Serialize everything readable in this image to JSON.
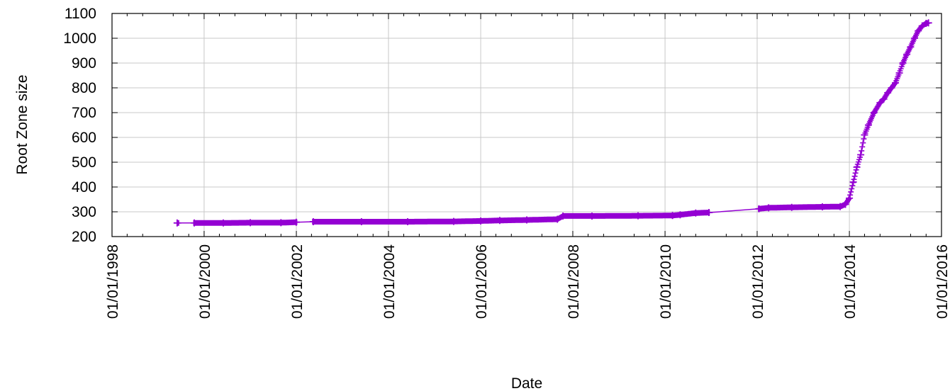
{
  "chart_data": {
    "type": "line",
    "title": "",
    "xlabel": "Date",
    "ylabel": "Root Zone size",
    "grid": true,
    "legend": "none",
    "marker": "plus",
    "color": "#9400d3",
    "x_ticks": [
      "01/01/1998",
      "01/01/2000",
      "01/01/2002",
      "01/01/2004",
      "01/01/2006",
      "01/01/2008",
      "01/01/2010",
      "01/01/2012",
      "01/01/2014",
      "01/01/2016"
    ],
    "y_ticks": [
      200,
      300,
      400,
      500,
      600,
      700,
      800,
      900,
      1000,
      1100
    ],
    "xlim": [
      "1998-01-01",
      "2016-01-01"
    ],
    "ylim": [
      200,
      1100
    ],
    "series": [
      {
        "x": [
          "1999-06-01",
          "1999-10-15",
          "2000-06-01",
          "2001-01-01",
          "2001-09-01",
          "2001-12-31",
          "2002-05-15",
          "2003-06-01",
          "2004-06-01",
          "2005-06-01",
          "2006-01-01",
          "2006-06-01",
          "2007-01-01",
          "2007-09-01",
          "2007-10-15",
          "2008-06-01",
          "2009-06-01",
          "2010-03-01",
          "2010-05-01",
          "2010-09-01",
          "2010-12-15",
          "2012-01-15",
          "2012-04-01",
          "2012-10-01",
          "2013-06-01",
          "2013-10-20",
          "2013-12-01",
          "2014-01-01",
          "2014-02-01",
          "2014-03-01",
          "2014-04-01",
          "2014-05-01",
          "2014-06-01",
          "2014-07-15",
          "2014-09-01",
          "2014-10-01",
          "2014-11-01",
          "2014-12-01",
          "2015-01-01",
          "2015-02-01",
          "2015-03-01",
          "2015-04-01",
          "2015-05-01",
          "2015-06-01",
          "2015-07-01",
          "2015-08-01",
          "2015-09-01",
          "2015-09-20"
        ],
        "values": [
          255,
          255,
          255,
          256,
          256,
          258,
          260,
          260,
          260,
          261,
          263,
          265,
          267,
          270,
          283,
          283,
          284,
          285,
          288,
          295,
          297,
          312,
          316,
          318,
          320,
          321,
          330,
          355,
          420,
          480,
          530,
          610,
          650,
          700,
          740,
          755,
          780,
          800,
          820,
          860,
          900,
          935,
          965,
          1000,
          1030,
          1050,
          1060,
          1062
        ]
      }
    ]
  }
}
